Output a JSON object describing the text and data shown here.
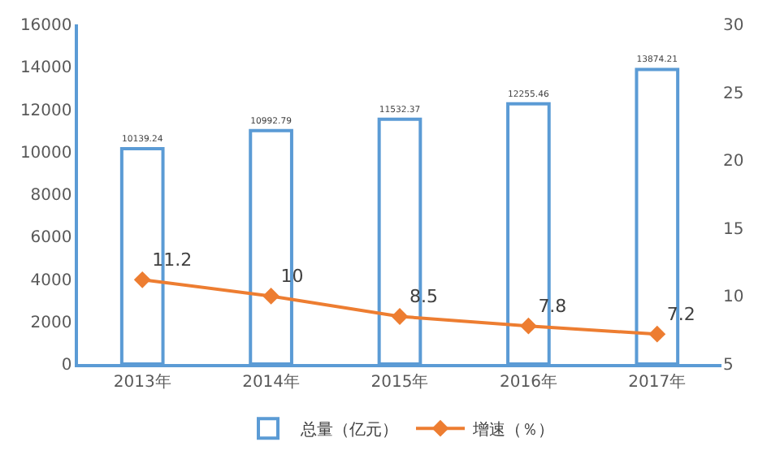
{
  "chart_data": {
    "type": "bar",
    "categories": [
      "2013年",
      "2014年",
      "2015年",
      "2016年",
      "2017年"
    ],
    "series": [
      {
        "name": "总量（亿元）",
        "color": "#5b9bd5",
        "values": [
          10139.24,
          10992.79,
          11532.37,
          12255.46,
          13874.21
        ]
      },
      {
        "name": "增速（％）",
        "type": "line",
        "axis": "y2",
        "color": "#ed7d31",
        "marker": "diamond",
        "values": [
          11.2,
          10,
          8.5,
          7.8,
          7.2
        ]
      }
    ],
    "ylim": [
      0,
      16000
    ],
    "yticks": [
      0,
      2000,
      4000,
      6000,
      8000,
      10000,
      12000,
      14000,
      16000
    ],
    "y2lim": [
      5,
      30
    ],
    "y2ticks": [
      5,
      10,
      15,
      20,
      25,
      30
    ],
    "data_labels": true,
    "legend": "bottom"
  }
}
